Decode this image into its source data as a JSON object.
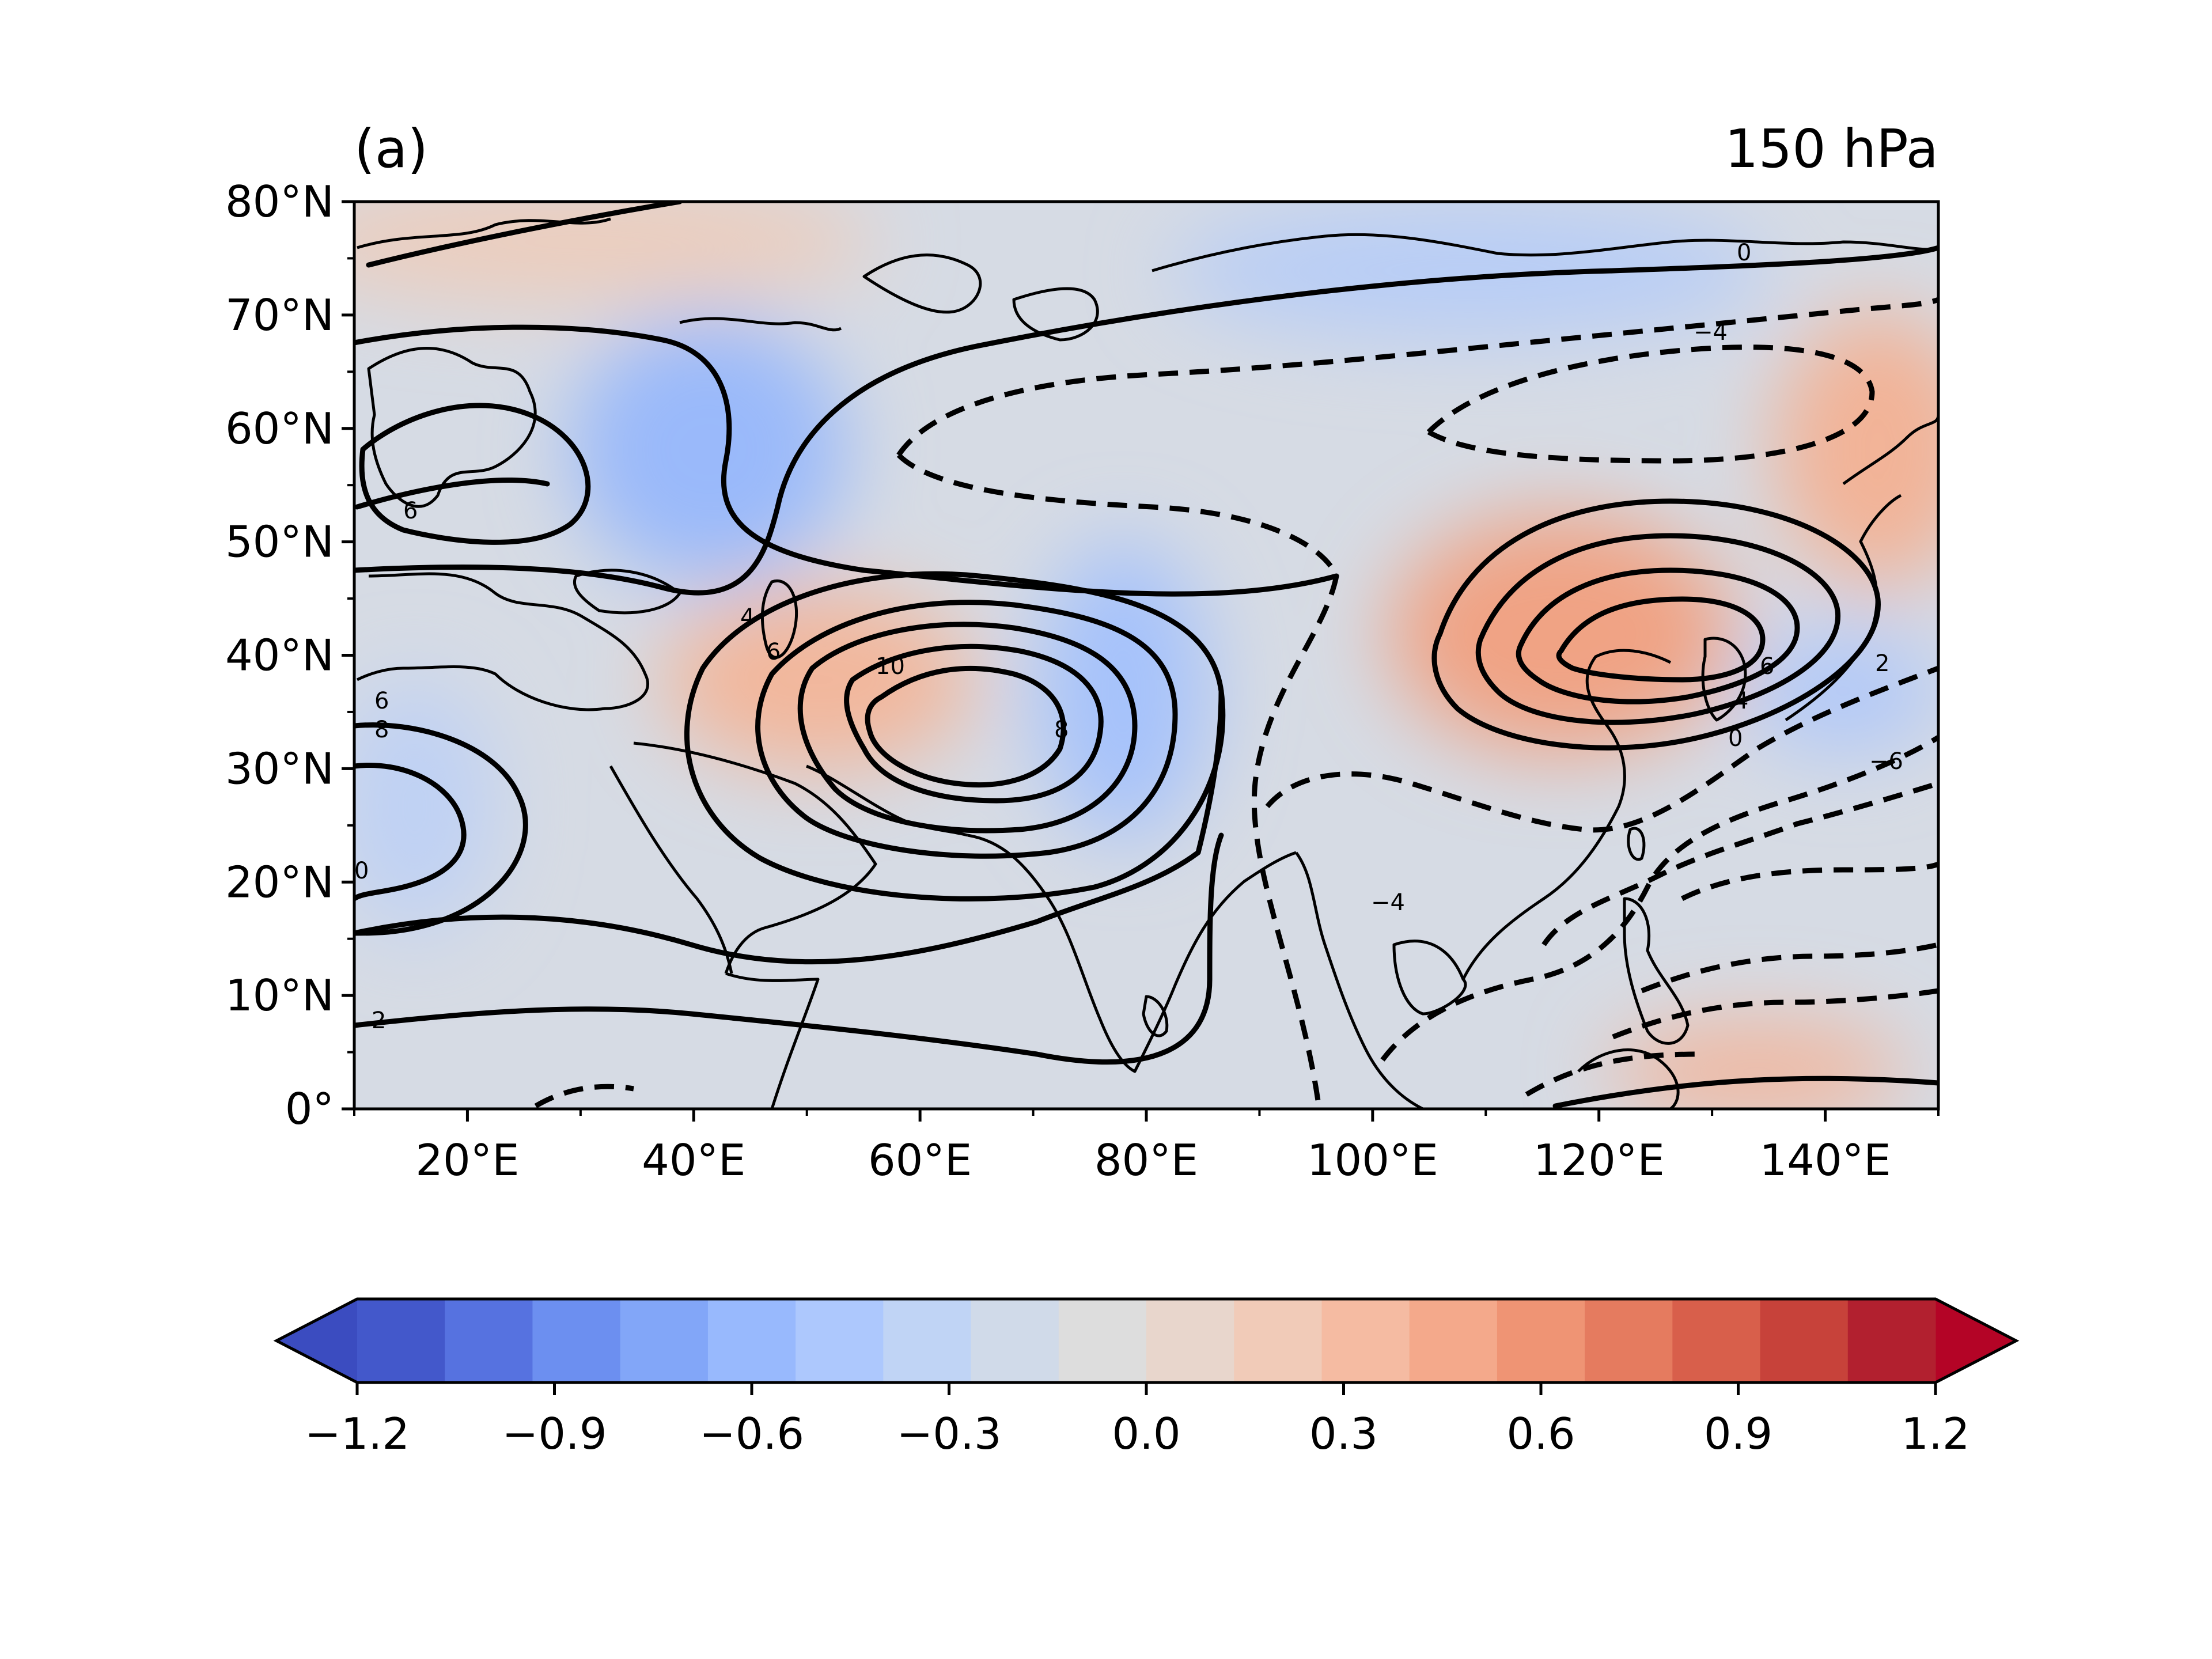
{
  "panel": {
    "label": "(a)",
    "level": "150 hPa"
  },
  "axes": {
    "x_ticks": [
      "20°E",
      "40°E",
      "60°E",
      "80°E",
      "100°E",
      "120°E",
      "140°E"
    ],
    "y_ticks": [
      "0°",
      "10°N",
      "20°N",
      "30°N",
      "40°N",
      "50°N",
      "60°N",
      "70°N",
      "80°N"
    ]
  },
  "colorbar": {
    "ticks": [
      "−1.2",
      "−0.9",
      "−0.6",
      "−0.3",
      "0.0",
      "0.3",
      "0.6",
      "0.9",
      "1.2"
    ],
    "colors": [
      "#4358cb",
      "#5672e0",
      "#6c8ff0",
      "#82a6f8",
      "#98b9fd",
      "#adc8fd",
      "#c0d4f5",
      "#d0dae9",
      "#dddddd",
      "#e8d6cc",
      "#f1cbb8",
      "#f5bba2",
      "#f4a98b",
      "#ef9474",
      "#e57b5f",
      "#d85f4b",
      "#c7423a",
      "#b2202f"
    ],
    "extend": "both"
  },
  "contour_labels": [
    "0",
    "−4",
    "6",
    "4",
    "6",
    "10",
    "8",
    "6",
    "8",
    "0",
    "2",
    "6",
    "4",
    "0",
    "2",
    "−6",
    "−4"
  ],
  "map_data": {
    "type": "filled-contour-map",
    "lon_range": [
      10,
      150
    ],
    "lat_range": [
      0,
      80
    ],
    "shading_range": [
      -1.2,
      1.2
    ],
    "shading_interval": 0.15,
    "contours": "solid positive, dashed negative"
  }
}
